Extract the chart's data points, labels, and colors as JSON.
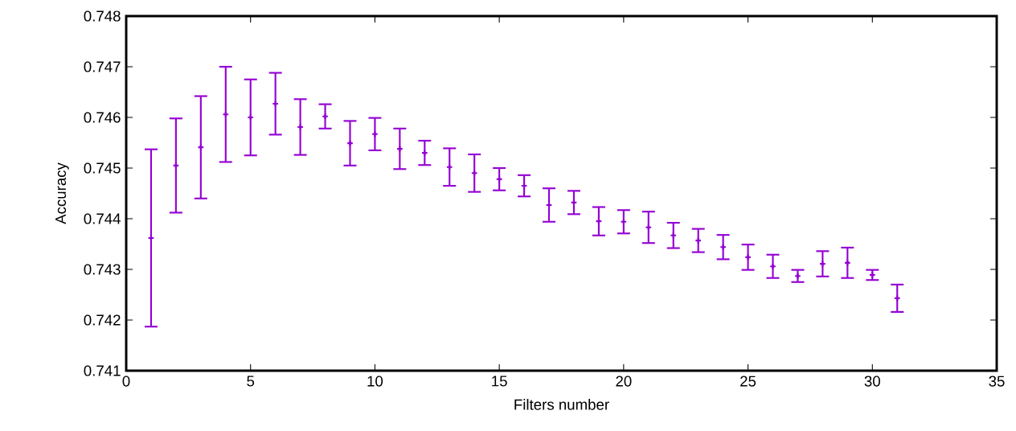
{
  "chart_data": {
    "type": "scatter",
    "xlabel": "Filters number",
    "ylabel": "Accuracy",
    "xlim": [
      0,
      35
    ],
    "xticks": [
      0,
      5,
      10,
      15,
      20,
      25,
      30,
      35
    ],
    "ylim": [
      0.741,
      0.748
    ],
    "yticks": [
      0.741,
      0.742,
      0.743,
      0.744,
      0.745,
      0.746,
      0.747,
      0.748
    ],
    "grid": false,
    "marker": "cross",
    "series": [
      {
        "color": "#9400d3",
        "x": [
          1,
          2,
          3,
          4,
          5,
          6,
          7,
          8,
          9,
          10,
          11,
          12,
          13,
          14,
          15,
          16,
          17,
          18,
          19,
          20,
          21,
          22,
          23,
          24,
          25,
          26,
          27,
          28,
          29,
          30,
          31
        ],
        "values": [
          0.74362,
          0.74505,
          0.74541,
          0.74606,
          0.746,
          0.74627,
          0.74581,
          0.74602,
          0.74549,
          0.74567,
          0.74538,
          0.7453,
          0.74502,
          0.7449,
          0.74478,
          0.74465,
          0.74427,
          0.74432,
          0.74395,
          0.74394,
          0.74383,
          0.74367,
          0.74357,
          0.74344,
          0.74324,
          0.74306,
          0.74287,
          0.74311,
          0.74313,
          0.74289,
          0.74243
        ],
        "errors": [
          0.00175,
          0.00093,
          0.00101,
          0.00094,
          0.00075,
          0.00061,
          0.00055,
          0.00024,
          0.00044,
          0.00032,
          0.0004,
          0.00024,
          0.00037,
          0.00037,
          0.00022,
          0.00021,
          0.00033,
          0.00023,
          0.00028,
          0.00023,
          0.00031,
          0.00025,
          0.00023,
          0.00024,
          0.00025,
          0.00023,
          0.00012,
          0.00025,
          0.0003,
          0.0001,
          0.00027
        ]
      }
    ]
  }
}
